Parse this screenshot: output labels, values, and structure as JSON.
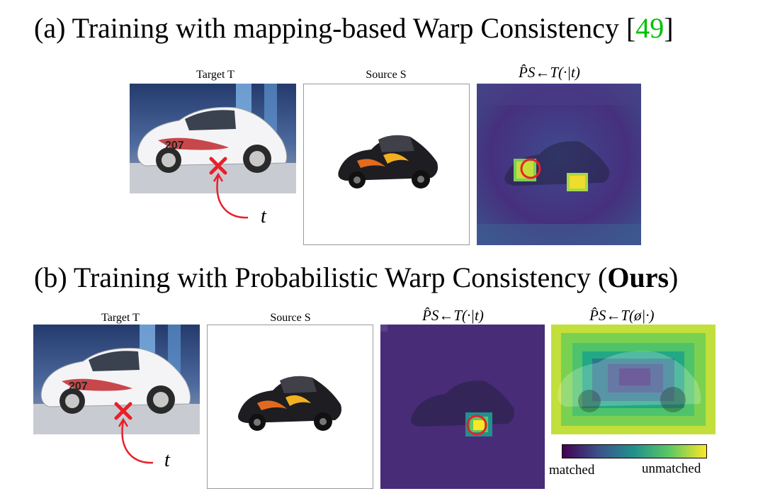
{
  "section_a": {
    "title_prefix": "(a) Training with mapping-based Warp Consistency [",
    "citation": "49",
    "title_suffix": "]",
    "target_label": "Target T",
    "source_label": "Source S",
    "prob_label": "P̂S←T(·|t)",
    "point_label": "t"
  },
  "section_b": {
    "title_prefix": "(b) Training with Probabilistic Warp Consistency (",
    "title_bold": "Ours",
    "title_suffix": ")",
    "target_label": "Target T",
    "source_label": "Source S",
    "prob_label": "P̂S←T(·|t)",
    "unmatched_prob_label": "P̂S←T(ø|·)",
    "point_label": "t"
  },
  "colorbar": {
    "low_label": "matched",
    "high_label": "unmatched",
    "colors": [
      "#440154",
      "#3b528b",
      "#21918c",
      "#5ec962",
      "#fde725"
    ]
  },
  "colors": {
    "marker": "#e8202a",
    "citation": "#00c000"
  }
}
